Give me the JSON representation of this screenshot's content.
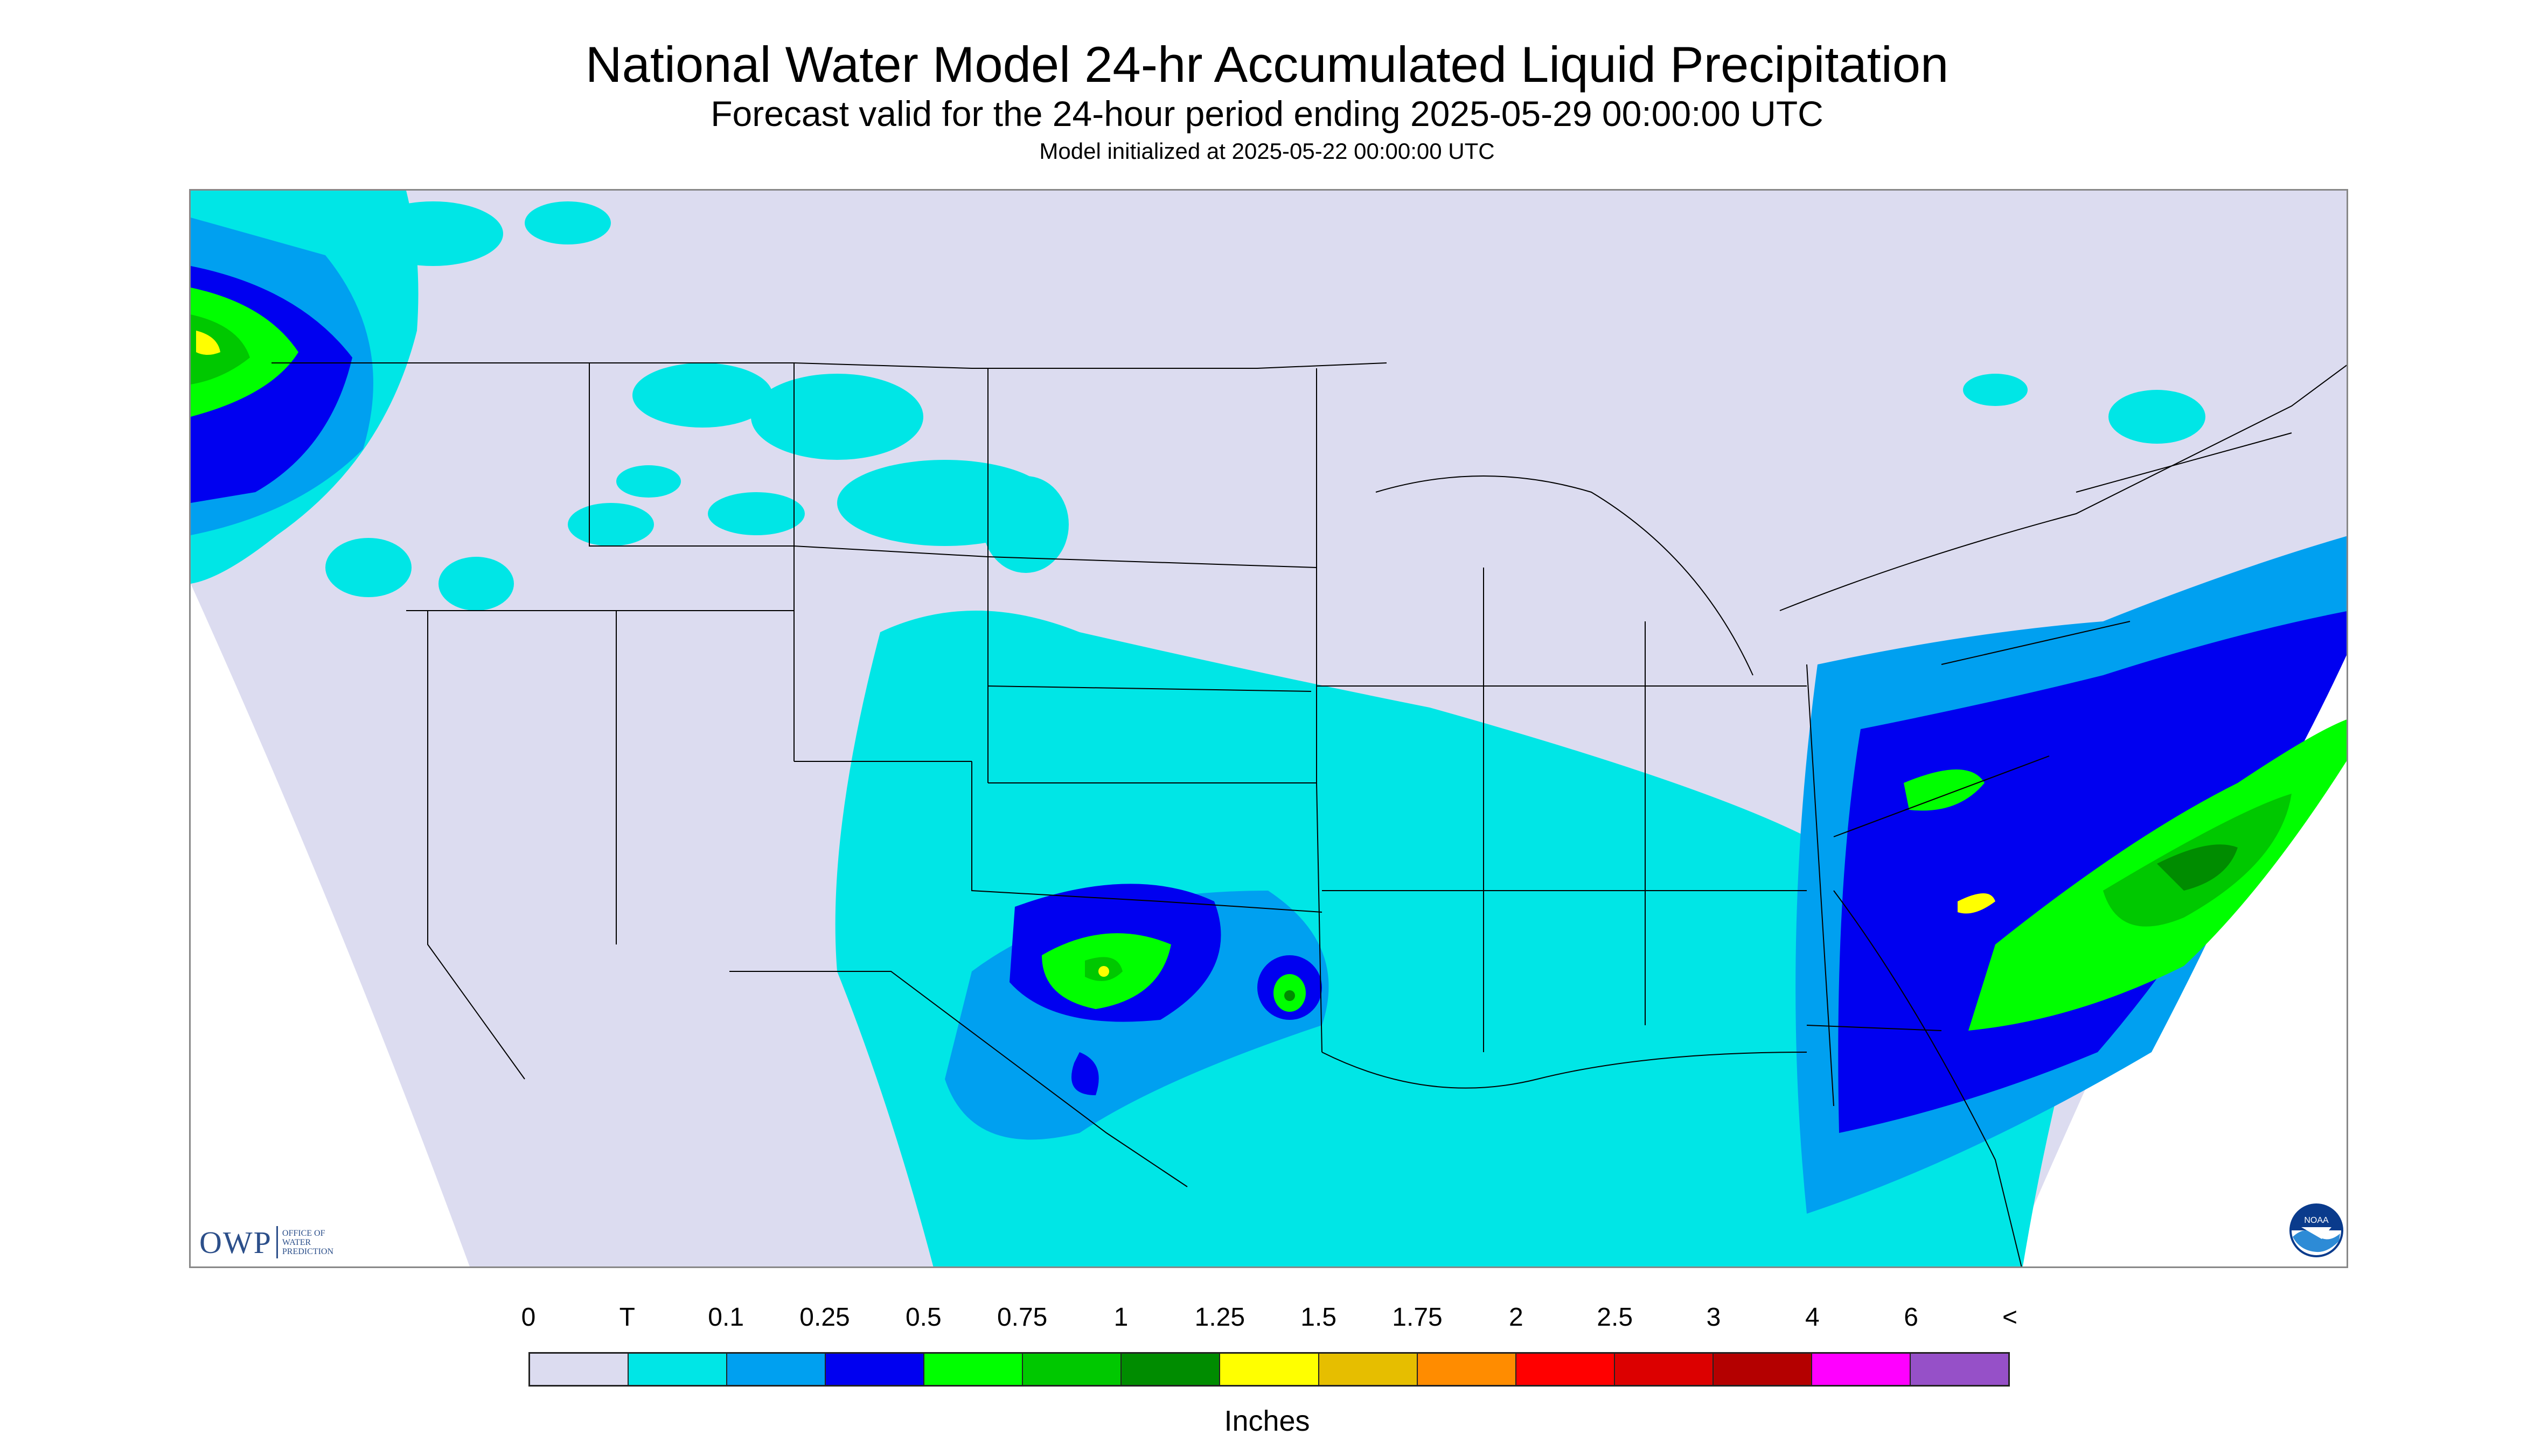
{
  "title": "National Water Model 24-hr Accumulated Liquid Precipitation",
  "subtitle": "Forecast valid for the 24-hour period ending 2025-05-29 00:00:00 UTC",
  "init_line": "Model initialized at 2025-05-22 00:00:00 UTC",
  "logos": {
    "owp": {
      "mark": "OWP",
      "text": "OFFICE OF WATER PREDICTION"
    },
    "noaa": {
      "text": "NOAA",
      "icon": "noaa-emblem-icon"
    }
  },
  "legend": {
    "labels": [
      "0",
      "T",
      "0.1",
      "0.25",
      "0.5",
      "0.75",
      "1",
      "1.25",
      "1.5",
      "1.75",
      "2",
      "2.5",
      "3",
      "4",
      "6",
      "<"
    ],
    "colors": [
      "#dcdcf0",
      "#00e6e6",
      "#00a0f0",
      "#0000f0",
      "#00ff00",
      "#00c800",
      "#008c00",
      "#ffff00",
      "#e6be00",
      "#ff8c00",
      "#ff0000",
      "#dc0000",
      "#b40000",
      "#ff00ff",
      "#9650c8"
    ],
    "units": "Inches"
  },
  "colors": {
    "no_data": "#ffffff",
    "background_zero": "#dcdcf0",
    "trace": "#00e6e6",
    "c_0_1": "#00a0f0",
    "c_0_25": "#0000f0",
    "c_0_5": "#00ff00",
    "c_0_75": "#00c800",
    "c_1": "#008c00",
    "c_1_25": "#ffff00",
    "c_1_5": "#e6be00",
    "boundaries": "#000000"
  }
}
